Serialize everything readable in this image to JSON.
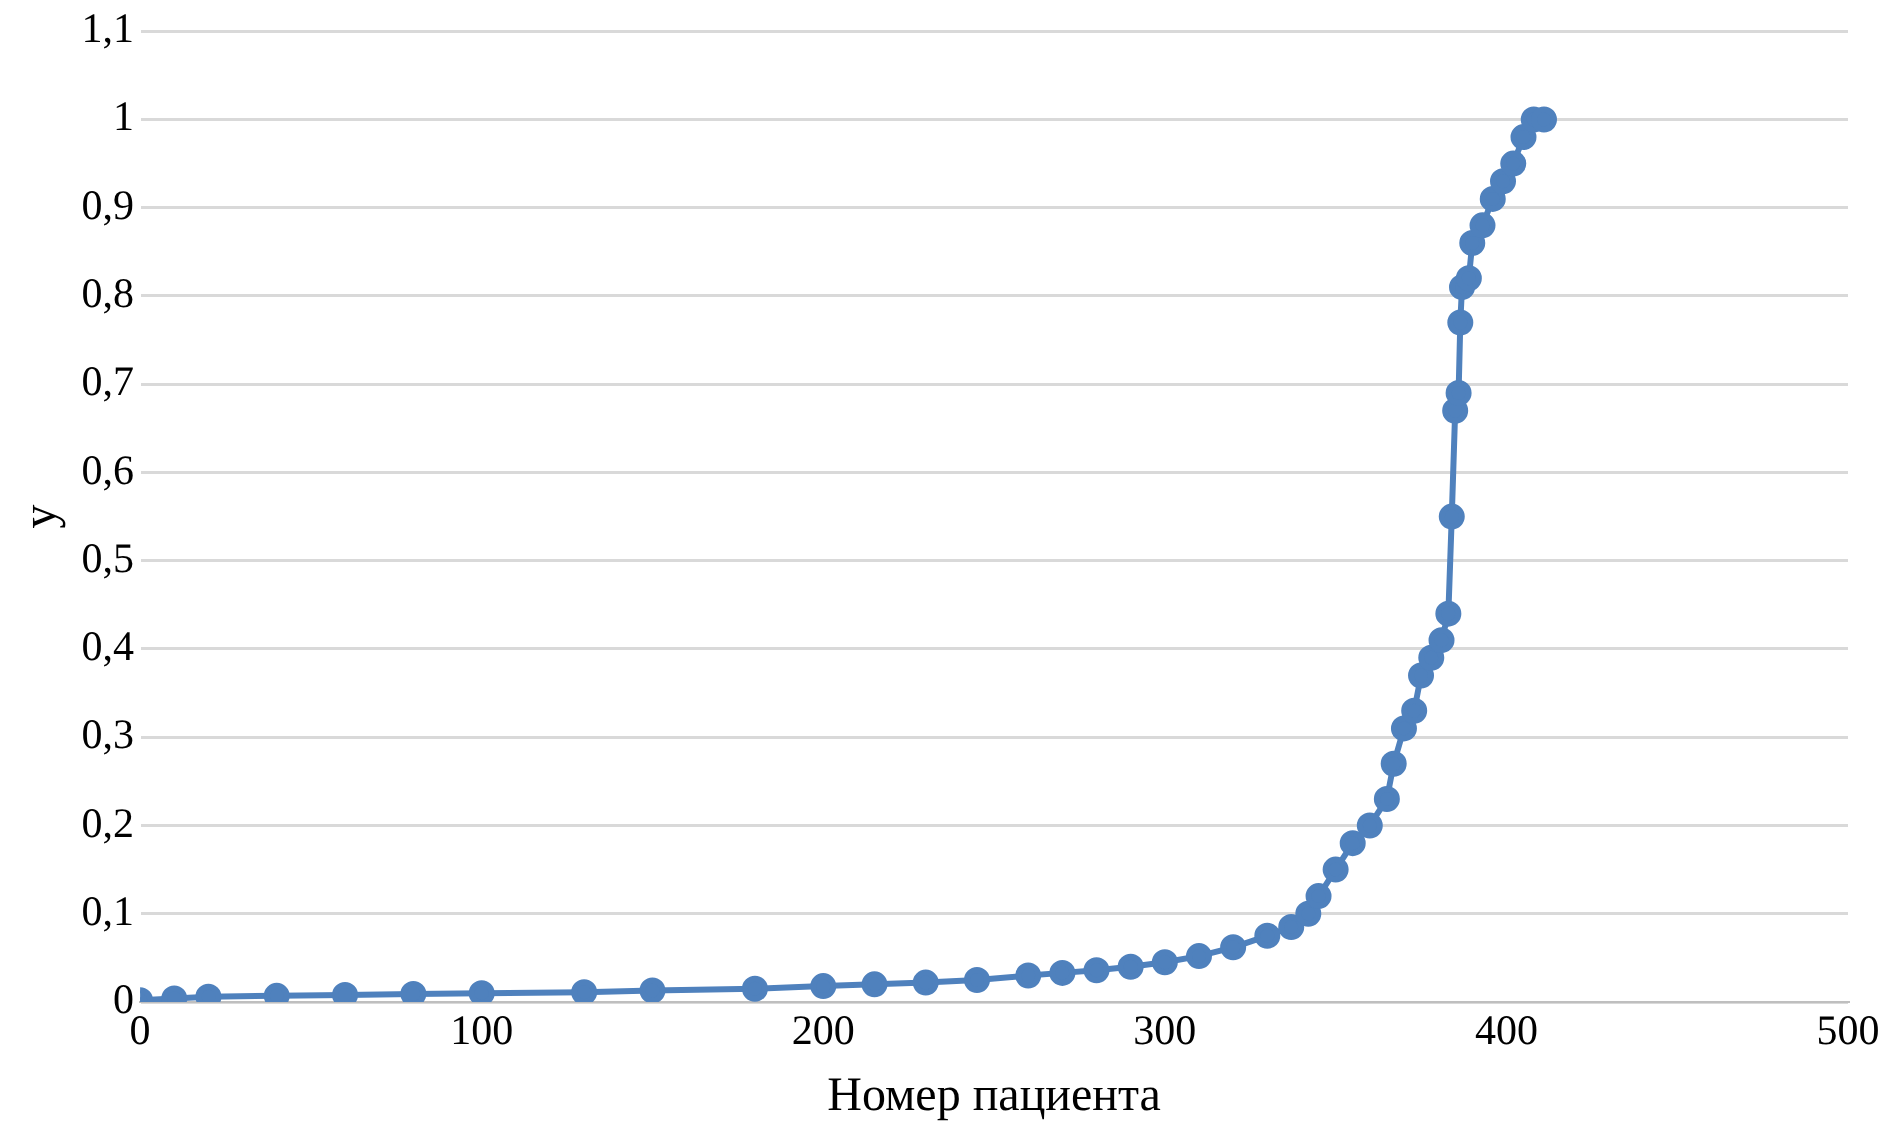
{
  "chart_data": {
    "type": "line",
    "xlabel": "Номер пациента",
    "ylabel": "y",
    "x": [
      0,
      10,
      20,
      40,
      60,
      80,
      100,
      130,
      150,
      180,
      200,
      215,
      230,
      245,
      260,
      270,
      280,
      290,
      300,
      310,
      320,
      330,
      337,
      342,
      345,
      350,
      355,
      360,
      365,
      367,
      370,
      373,
      375,
      378,
      381,
      383,
      384,
      385,
      386,
      386.5,
      387,
      389,
      390,
      393,
      396,
      399,
      402,
      405,
      408,
      411
    ],
    "series": [
      {
        "color": "#4f81bd",
        "values": [
          0.002,
          0.004,
          0.006,
          0.007,
          0.008,
          0.009,
          0.01,
          0.011,
          0.013,
          0.015,
          0.018,
          0.02,
          0.022,
          0.025,
          0.03,
          0.033,
          0.036,
          0.04,
          0.045,
          0.052,
          0.062,
          0.075,
          0.085,
          0.1,
          0.12,
          0.15,
          0.18,
          0.2,
          0.23,
          0.27,
          0.31,
          0.33,
          0.37,
          0.39,
          0.41,
          0.44,
          0.55,
          0.67,
          0.69,
          0.77,
          0.81,
          0.82,
          0.86,
          0.88,
          0.91,
          0.93,
          0.95,
          0.98,
          1.0,
          1.0
        ]
      }
    ],
    "xlim": [
      0,
      500
    ],
    "xticks": [
      0,
      100,
      200,
      300,
      400,
      500
    ],
    "ylim": [
      0,
      1.1
    ],
    "yticks": [
      {
        "value": 0,
        "label": "0"
      },
      {
        "value": 0.1,
        "label": "0,1"
      },
      {
        "value": 0.2,
        "label": "0,2"
      },
      {
        "value": 0.3,
        "label": "0,3"
      },
      {
        "value": 0.4,
        "label": "0,4"
      },
      {
        "value": 0.5,
        "label": "0,5"
      },
      {
        "value": 0.6,
        "label": "0,6"
      },
      {
        "value": 0.7,
        "label": "0,7"
      },
      {
        "value": 0.8,
        "label": "0,8"
      },
      {
        "value": 0.9,
        "label": "0,9"
      },
      {
        "value": 1,
        "label": "1"
      },
      {
        "value": 1.1,
        "label": "1,1"
      }
    ],
    "grid": "y",
    "marker": "circle",
    "line_style": "solid"
  }
}
